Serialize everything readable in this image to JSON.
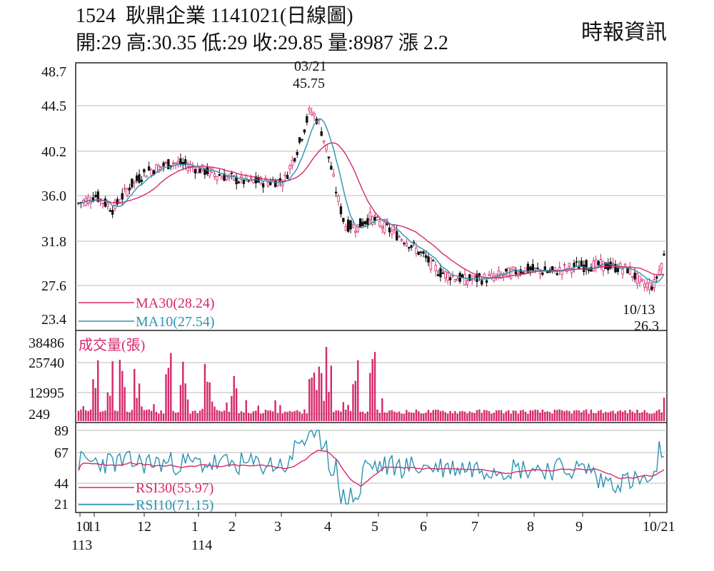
{
  "header": {
    "title": "1524  耿鼎企業 1141021(日線圖)",
    "quote": "開:29 高:30.35 低:29 收:29.85 量:8987 漲 2.2",
    "source": "時報資訊"
  },
  "chart_data": [
    {
      "type": "candlestick",
      "panel": "price",
      "y_ticks": [
        "48.7",
        "44.5",
        "40.2",
        "36.0",
        "31.8",
        "27.6",
        "23.4"
      ],
      "ylim": [
        23.4,
        48.7
      ],
      "annotations": [
        {
          "date_label": "03/21",
          "value": "45.75",
          "kind": "high"
        },
        {
          "date_label": "10/13",
          "value": "26.3",
          "kind": "low"
        }
      ],
      "legend": [
        {
          "label": "MA30(28.24)",
          "color": "#d6286a"
        },
        {
          "label": "MA10(27.54)",
          "color": "#2a93b0"
        }
      ],
      "series": [
        {
          "name": "MA30",
          "color": "#d6286a"
        },
        {
          "name": "MA10",
          "color": "#2a93b0"
        }
      ]
    },
    {
      "type": "bar",
      "panel": "volume",
      "title": "成交量(張)",
      "y_ticks": [
        "38486",
        "25740",
        "12995",
        "249"
      ],
      "ylim": [
        249,
        38486
      ],
      "color": "#d6286a"
    },
    {
      "type": "line",
      "panel": "rsi",
      "y_ticks": [
        "89",
        "67",
        "44",
        "21"
      ],
      "legend": [
        {
          "label": "RSI30(55.97)",
          "color": "#d6286a"
        },
        {
          "label": "RSI10(71.15)",
          "color": "#2a93b0"
        }
      ],
      "series": [
        {
          "name": "RSI30",
          "color": "#d6286a"
        },
        {
          "name": "RSI10",
          "color": "#2a93b0"
        }
      ]
    }
  ],
  "x_axis": {
    "labels": [
      "10",
      "11",
      "12",
      "1",
      "2",
      "3",
      "4",
      "5",
      "6",
      "7",
      "8",
      "9",
      "10/21"
    ],
    "year_labels": [
      "113",
      "114"
    ]
  }
}
